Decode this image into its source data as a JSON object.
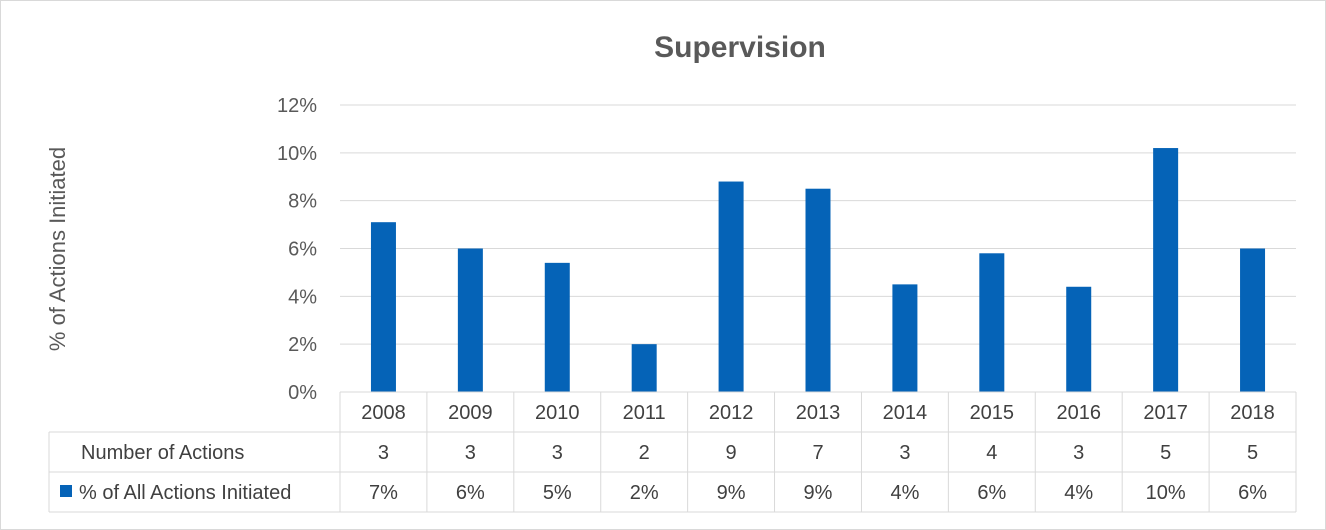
{
  "chart_data": {
    "type": "bar",
    "title": "Supervision",
    "ylabel": "% of Actions Initiated",
    "xlabel": "",
    "ylim": [
      0,
      12
    ],
    "y_ticks": [
      "0%",
      "2%",
      "4%",
      "6%",
      "8%",
      "10%",
      "12%"
    ],
    "grid": true,
    "categories": [
      "2008",
      "2009",
      "2010",
      "2011",
      "2012",
      "2013",
      "2014",
      "2015",
      "2016",
      "2017",
      "2018"
    ],
    "series": [
      {
        "name": "% of All Actions Initiated",
        "color": "#0563b7",
        "values": [
          7.1,
          6.0,
          5.4,
          2.0,
          8.8,
          8.5,
          4.5,
          5.8,
          4.4,
          10.2,
          6.0
        ]
      }
    ],
    "data_table": {
      "rows": [
        {
          "label": "Number of Actions",
          "values": [
            "3",
            "3",
            "3",
            "2",
            "9",
            "7",
            "3",
            "4",
            "3",
            "5",
            "5"
          ]
        },
        {
          "label": "% of All Actions Initiated",
          "values": [
            "7%",
            "6%",
            "5%",
            "2%",
            "9%",
            "9%",
            "4%",
            "6%",
            "4%",
            "10%",
            "6%"
          ],
          "has_legend_key": true
        }
      ]
    }
  }
}
